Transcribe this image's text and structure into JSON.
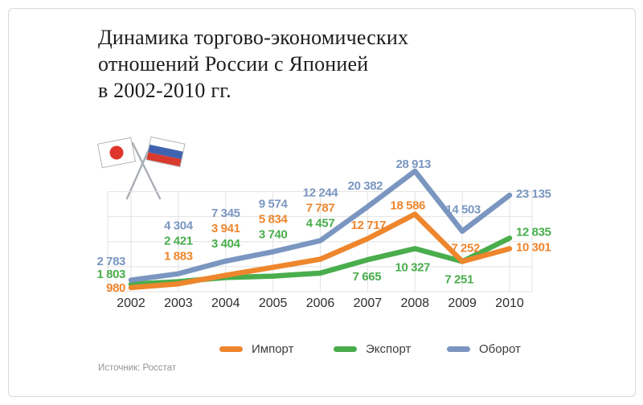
{
  "title_lines": [
    "Динамика торгово-экономических",
    "отношений России с Японией",
    "в 2002-2010 гг."
  ],
  "source": "Источник: Росстат",
  "flags": {
    "left": "japan-flag",
    "right": "russia-flag",
    "japan_red": "#de352c",
    "russia_blue": "#3f63ae",
    "russia_red": "#d93a2f"
  },
  "legend": [
    {
      "label": "Импорт",
      "color": "#EE862D"
    },
    {
      "label": "Экспорт",
      "color": "#49AD4C"
    },
    {
      "label": "Оборот",
      "color": "#7A96C0"
    }
  ],
  "chart_data": {
    "type": "line",
    "title": "Динамика торгово-экономических отношений России с Японией в 2002-2010 гг.",
    "categories": [
      2002,
      2003,
      2004,
      2005,
      2006,
      2007,
      2008,
      2009,
      2010
    ],
    "series": [
      {
        "name": "Импорт",
        "color": "#EE862D",
        "values": [
          980,
          1883,
          3941,
          5834,
          7787,
          12717,
          18586,
          7252,
          10301
        ]
      },
      {
        "name": "Экспорт",
        "color": "#49AD4C",
        "values": [
          1803,
          2421,
          3404,
          3740,
          4457,
          7665,
          10327,
          7251,
          12835
        ]
      },
      {
        "name": "Оборот",
        "color": "#7A96C0",
        "values": [
          2783,
          4304,
          7345,
          9574,
          12244,
          20382,
          28913,
          14503,
          23135
        ]
      }
    ],
    "ylim": [
      0,
      30000
    ],
    "grid": true,
    "legend_position": "bottom",
    "source": "Источник: Росстат",
    "axis_text_color": "#2e2e2e",
    "grid_color": "#e2e2e2"
  }
}
